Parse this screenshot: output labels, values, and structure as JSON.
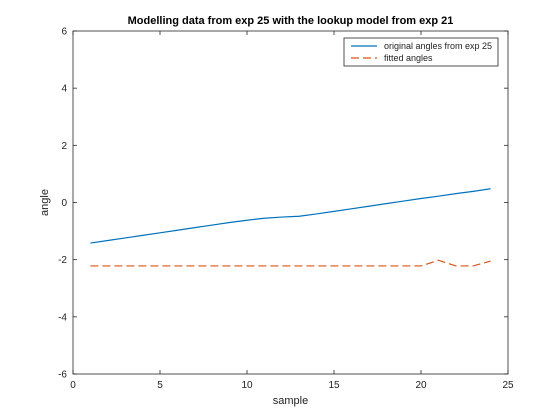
{
  "chart_data": {
    "type": "line",
    "title": "Modelling data from exp 25 with the lookup model from exp 21",
    "xlabel": "sample",
    "ylabel": "angle",
    "xlim": [
      0,
      25
    ],
    "ylim": [
      -6,
      6
    ],
    "xticks": [
      0,
      5,
      10,
      15,
      20,
      25
    ],
    "yticks": [
      -6,
      -4,
      -2,
      0,
      2,
      4,
      6
    ],
    "grid": false,
    "legend_position": "top-right",
    "series": [
      {
        "name": "original angles from exp 25",
        "color": "#0072BD",
        "style": "solid",
        "x": [
          1,
          2,
          3,
          4,
          5,
          6,
          7,
          8,
          9,
          10,
          11,
          12,
          13,
          14,
          15,
          16,
          17,
          18,
          19,
          20,
          21,
          22,
          23,
          24
        ],
        "y": [
          -1.42,
          -1.33,
          -1.24,
          -1.15,
          -1.06,
          -0.97,
          -0.88,
          -0.79,
          -0.7,
          -0.62,
          -0.55,
          -0.51,
          -0.48,
          -0.4,
          -0.31,
          -0.22,
          -0.13,
          -0.04,
          0.05,
          0.14,
          0.22,
          0.31,
          0.39,
          0.48
        ]
      },
      {
        "name": "fitted angles",
        "color": "#D95319",
        "style": "dashed",
        "x": [
          1,
          2,
          3,
          4,
          5,
          6,
          7,
          8,
          9,
          10,
          11,
          12,
          13,
          14,
          15,
          16,
          17,
          18,
          19,
          20,
          21,
          22,
          23,
          24
        ],
        "y": [
          -2.22,
          -2.22,
          -2.22,
          -2.22,
          -2.22,
          -2.22,
          -2.22,
          -2.22,
          -2.22,
          -2.22,
          -2.22,
          -2.22,
          -2.22,
          -2.22,
          -2.22,
          -2.22,
          -2.22,
          -2.22,
          -2.22,
          -2.22,
          -2.02,
          -2.22,
          -2.22,
          -2.05
        ]
      }
    ]
  }
}
